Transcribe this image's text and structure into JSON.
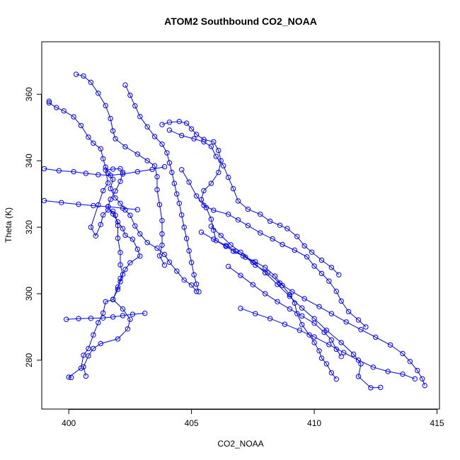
{
  "chart_data": {
    "type": "line",
    "title": "ATOM2 Southbound CO2_NOAA",
    "xlabel": "CO2_NOAA",
    "ylabel": "Theta (K)",
    "xlim": [
      398.9,
      415.1
    ],
    "ylim": [
      265.3,
      375.8
    ],
    "xticks": [
      400,
      405,
      410,
      415
    ],
    "yticks": [
      280,
      300,
      320,
      340,
      360
    ],
    "grid": false,
    "series_color": "#0000ff",
    "marker": "open-circle",
    "series": [
      {
        "values": [
          [
            400.1,
            274.8
          ],
          [
            400.0,
            274.9
          ],
          [
            400.5,
            277.6
          ],
          [
            400.6,
            281.5
          ],
          [
            400.8,
            283.5
          ],
          [
            401.0,
            287.6
          ],
          [
            401.2,
            291.3
          ],
          [
            401.4,
            294.2
          ],
          [
            401.5,
            297.6
          ],
          [
            401.8,
            298.2
          ],
          [
            402.0,
            302.0
          ],
          [
            402.1,
            303.6
          ],
          [
            402.2,
            305.8
          ],
          [
            402.1,
            308.7
          ],
          [
            402.1,
            312.4
          ],
          [
            402.0,
            316.7
          ],
          [
            402.0,
            320.5
          ],
          [
            401.9,
            323.6
          ],
          [
            401.8,
            324.8
          ],
          [
            401.6,
            325.2
          ],
          [
            401.4,
            323.7
          ],
          [
            401.3,
            320.8
          ],
          [
            401.1,
            317.4
          ],
          [
            400.9,
            320.0
          ],
          [
            401.2,
            326.7
          ],
          [
            401.4,
            331.0
          ],
          [
            401.6,
            333.3
          ],
          [
            401.5,
            337.2
          ],
          [
            401.8,
            337.5
          ],
          [
            402.1,
            337.6
          ],
          [
            402.2,
            336.5
          ],
          [
            402.1,
            333.8
          ],
          [
            401.9,
            330.9
          ],
          [
            401.7,
            328.4
          ],
          [
            401.6,
            326.2
          ],
          [
            401.8,
            324.0
          ],
          [
            402.0,
            321.6
          ],
          [
            402.2,
            319.6
          ],
          [
            402.3,
            317.6
          ],
          [
            402.6,
            316.4
          ],
          [
            402.8,
            313.4
          ],
          [
            402.9,
            311.3
          ],
          [
            402.5,
            309.3
          ],
          [
            402.3,
            307.3
          ],
          [
            402.1,
            304.6
          ],
          [
            402.0,
            301.3
          ],
          [
            401.8,
            298.3
          ],
          [
            402.2,
            295.4
          ],
          [
            402.5,
            292.3
          ],
          [
            402.4,
            289.4
          ],
          [
            402.0,
            286.4
          ],
          [
            401.3,
            285.0
          ],
          [
            401.0,
            283.5
          ],
          [
            400.8,
            281.3
          ],
          [
            400.6,
            278.0
          ],
          [
            400.7,
            275.2
          ]
        ]
      },
      {
        "values": [
          [
            399.2,
            357.9
          ],
          [
            399.2,
            357.4
          ],
          [
            399.5,
            356.0
          ],
          [
            399.8,
            355.0
          ],
          [
            400.2,
            353.2
          ],
          [
            400.5,
            350.6
          ],
          [
            400.8,
            347.1
          ],
          [
            401.0,
            345.3
          ],
          [
            401.3,
            343.6
          ],
          [
            401.4,
            340.6
          ],
          [
            401.5,
            338.1
          ],
          [
            401.6,
            336.2
          ],
          [
            401.8,
            334.4
          ],
          [
            401.7,
            331.6
          ],
          [
            401.9,
            328.8
          ],
          [
            402.1,
            327.2
          ],
          [
            402.3,
            325.2
          ],
          [
            402.5,
            323.6
          ],
          [
            402.7,
            320.4
          ],
          [
            402.9,
            318.0
          ],
          [
            403.2,
            315.4
          ],
          [
            403.6,
            313.7
          ],
          [
            403.9,
            311.8
          ],
          [
            404.1,
            309.5
          ],
          [
            404.4,
            306.8
          ],
          [
            404.7,
            304.1
          ],
          [
            405.0,
            302.6
          ],
          [
            405.2,
            300.7
          ]
        ]
      },
      {
        "values": [
          [
            400.3,
            366.0
          ],
          [
            400.6,
            365.5
          ],
          [
            400.9,
            363.6
          ],
          [
            401.2,
            360.3
          ],
          [
            401.5,
            356.6
          ],
          [
            401.7,
            352.7
          ],
          [
            401.8,
            349.0
          ],
          [
            401.9,
            346.6
          ],
          [
            402.3,
            344.2
          ],
          [
            402.8,
            342.0
          ],
          [
            403.2,
            340.0
          ],
          [
            403.5,
            338.5
          ],
          [
            403.6,
            335.2
          ],
          [
            403.6,
            331.3
          ],
          [
            403.7,
            326.8
          ],
          [
            403.8,
            322.0
          ],
          [
            403.8,
            318.0
          ],
          [
            403.8,
            314.6
          ],
          [
            403.7,
            311.4
          ],
          [
            403.9,
            308.6
          ]
        ]
      },
      {
        "values": [
          [
            403.8,
            350.9
          ],
          [
            404.1,
            351.6
          ],
          [
            404.5,
            351.8
          ],
          [
            404.8,
            351.3
          ],
          [
            405.0,
            349.6
          ],
          [
            405.2,
            347.9
          ],
          [
            405.5,
            346.4
          ],
          [
            405.9,
            345.7
          ],
          [
            406.1,
            343.1
          ],
          [
            406.2,
            340.0
          ],
          [
            406.1,
            336.5
          ],
          [
            405.8,
            333.2
          ],
          [
            405.5,
            331.0
          ],
          [
            405.4,
            328.3
          ],
          [
            405.6,
            325.9
          ],
          [
            405.8,
            322.4
          ],
          [
            405.9,
            319.1
          ],
          [
            406.0,
            316.0
          ],
          [
            406.4,
            314.2
          ],
          [
            406.7,
            312.8
          ],
          [
            407.1,
            311.4
          ],
          [
            407.6,
            309.6
          ],
          [
            408.0,
            307.9
          ],
          [
            408.4,
            305.3
          ],
          [
            408.7,
            302.5
          ],
          [
            409.0,
            299.7
          ],
          [
            409.2,
            297.2
          ],
          [
            409.3,
            294.0
          ],
          [
            409.5,
            290.7
          ],
          [
            409.8,
            287.6
          ],
          [
            410.0,
            285.3
          ],
          [
            410.2,
            282.8
          ],
          [
            410.3,
            280.6
          ],
          [
            410.5,
            278.9
          ],
          [
            410.7,
            276.2
          ],
          [
            410.9,
            274.3
          ]
        ]
      },
      {
        "values": [
          [
            404.1,
            349.2
          ],
          [
            404.6,
            347.6
          ],
          [
            405.1,
            346.6
          ],
          [
            405.5,
            345.7
          ],
          [
            405.8,
            344.3
          ],
          [
            406.0,
            341.3
          ],
          [
            406.3,
            338.5
          ],
          [
            406.5,
            335.0
          ],
          [
            406.7,
            331.6
          ],
          [
            406.9,
            327.9
          ],
          [
            407.3,
            325.4
          ],
          [
            407.8,
            323.9
          ],
          [
            408.2,
            321.8
          ],
          [
            408.6,
            320.6
          ],
          [
            408.9,
            319.6
          ],
          [
            409.3,
            317.2
          ],
          [
            409.6,
            314.4
          ],
          [
            409.9,
            312.5
          ],
          [
            410.3,
            310.1
          ],
          [
            410.7,
            307.9
          ],
          [
            411.0,
            305.7
          ]
        ]
      },
      {
        "values": [
          [
            405.4,
            318.5
          ],
          [
            405.9,
            316.4
          ],
          [
            406.4,
            314.5
          ],
          [
            406.8,
            312.8
          ],
          [
            407.2,
            311.0
          ],
          [
            407.6,
            308.6
          ],
          [
            408.1,
            306.3
          ],
          [
            408.6,
            303.2
          ],
          [
            409.1,
            300.6
          ],
          [
            409.6,
            298.5
          ],
          [
            410.2,
            296.1
          ],
          [
            410.7,
            294.0
          ],
          [
            411.3,
            291.5
          ],
          [
            411.9,
            289.2
          ],
          [
            412.5,
            286.9
          ],
          [
            413.1,
            284.6
          ],
          [
            413.6,
            282.0
          ],
          [
            413.9,
            279.6
          ],
          [
            414.2,
            276.9
          ],
          [
            414.4,
            274.4
          ],
          [
            414.5,
            272.4
          ]
        ]
      },
      {
        "values": [
          [
            405.8,
            320.3
          ],
          [
            406.2,
            317.5
          ],
          [
            406.6,
            314.7
          ],
          [
            407.0,
            312.5
          ],
          [
            407.5,
            309.5
          ],
          [
            408.0,
            306.3
          ],
          [
            408.5,
            302.8
          ],
          [
            409.0,
            299.2
          ],
          [
            409.5,
            295.7
          ],
          [
            410.0,
            292.5
          ],
          [
            410.5,
            289.0
          ],
          [
            411.1,
            285.3
          ],
          [
            411.6,
            281.8
          ],
          [
            411.9,
            278.9
          ],
          [
            411.8,
            275.1
          ],
          [
            412.3,
            271.7
          ],
          [
            412.7,
            271.8
          ]
        ]
      },
      {
        "values": [
          [
            404.6,
            337.3
          ],
          [
            404.9,
            333.6
          ],
          [
            405.2,
            329.4
          ],
          [
            405.5,
            326.6
          ],
          [
            405.9,
            325.1
          ],
          [
            406.5,
            323.9
          ],
          [
            406.9,
            322.2
          ],
          [
            407.3,
            320.5
          ],
          [
            407.8,
            318.3
          ],
          [
            408.3,
            316.5
          ],
          [
            408.7,
            314.8
          ],
          [
            409.2,
            313.1
          ],
          [
            409.7,
            311.1
          ],
          [
            410.0,
            308.3
          ],
          [
            410.3,
            306.1
          ],
          [
            410.6,
            303.8
          ],
          [
            410.9,
            300.7
          ],
          [
            411.1,
            297.8
          ],
          [
            411.4,
            294.6
          ],
          [
            411.8,
            292.1
          ],
          [
            412.1,
            290.0
          ]
        ]
      },
      {
        "values": [
          [
            399.0,
            337.6
          ],
          [
            399.6,
            337.0
          ],
          [
            400.2,
            336.7
          ],
          [
            400.7,
            336.2
          ],
          [
            401.2,
            335.8
          ],
          [
            401.7,
            335.6
          ],
          [
            402.2,
            336.0
          ],
          [
            402.8,
            336.7
          ],
          [
            403.4,
            337.4
          ],
          [
            403.9,
            338.2
          ]
        ]
      },
      {
        "values": [
          [
            399.0,
            328.0
          ],
          [
            399.7,
            327.4
          ],
          [
            400.4,
            326.9
          ],
          [
            401.0,
            326.5
          ],
          [
            401.6,
            326.2
          ],
          [
            402.2,
            325.7
          ],
          [
            402.8,
            325.3
          ]
        ]
      },
      {
        "values": [
          [
            399.9,
            292.3
          ],
          [
            400.4,
            292.5
          ],
          [
            400.9,
            292.6
          ],
          [
            401.4,
            292.7
          ],
          [
            401.8,
            293.0
          ],
          [
            402.2,
            293.4
          ],
          [
            402.6,
            293.8
          ],
          [
            403.1,
            294.1
          ]
        ]
      },
      {
        "values": [
          [
            402.3,
            362.8
          ],
          [
            402.5,
            359.7
          ],
          [
            402.7,
            356.5
          ],
          [
            402.9,
            353.3
          ],
          [
            403.2,
            350.2
          ],
          [
            403.5,
            347.3
          ],
          [
            403.8,
            345.0
          ],
          [
            404.0,
            342.4
          ],
          [
            404.1,
            339.4
          ],
          [
            404.2,
            336.5
          ],
          [
            404.3,
            333.2
          ],
          [
            404.4,
            330.0
          ],
          [
            404.5,
            327.2
          ],
          [
            404.6,
            323.7
          ],
          [
            404.7,
            320.0
          ],
          [
            404.8,
            316.6
          ],
          [
            404.9,
            312.9
          ],
          [
            405.0,
            309.4
          ],
          [
            405.1,
            305.7
          ],
          [
            405.2,
            302.9
          ],
          [
            405.3,
            300.6
          ]
        ]
      },
      {
        "values": [
          [
            407.0,
            295.6
          ],
          [
            407.6,
            294.0
          ],
          [
            408.2,
            292.5
          ],
          [
            408.8,
            290.8
          ],
          [
            409.4,
            289.0
          ],
          [
            410.0,
            287.0
          ],
          [
            410.6,
            284.7
          ],
          [
            411.2,
            282.3
          ],
          [
            411.8,
            280.0
          ],
          [
            412.4,
            277.9
          ],
          [
            413.0,
            276.6
          ],
          [
            413.6,
            275.8
          ],
          [
            414.1,
            274.4
          ]
        ]
      },
      {
        "values": [
          [
            406.5,
            308.2
          ],
          [
            407.0,
            305.5
          ],
          [
            407.5,
            302.7
          ],
          [
            408.0,
            300.0
          ],
          [
            408.5,
            297.6
          ],
          [
            409.0,
            295.4
          ],
          [
            409.5,
            293.3
          ],
          [
            410.0,
            291.1
          ],
          [
            410.4,
            288.4
          ],
          [
            410.7,
            286.1
          ],
          [
            410.9,
            283.3
          ],
          [
            411.1,
            281.1
          ]
        ]
      }
    ]
  }
}
